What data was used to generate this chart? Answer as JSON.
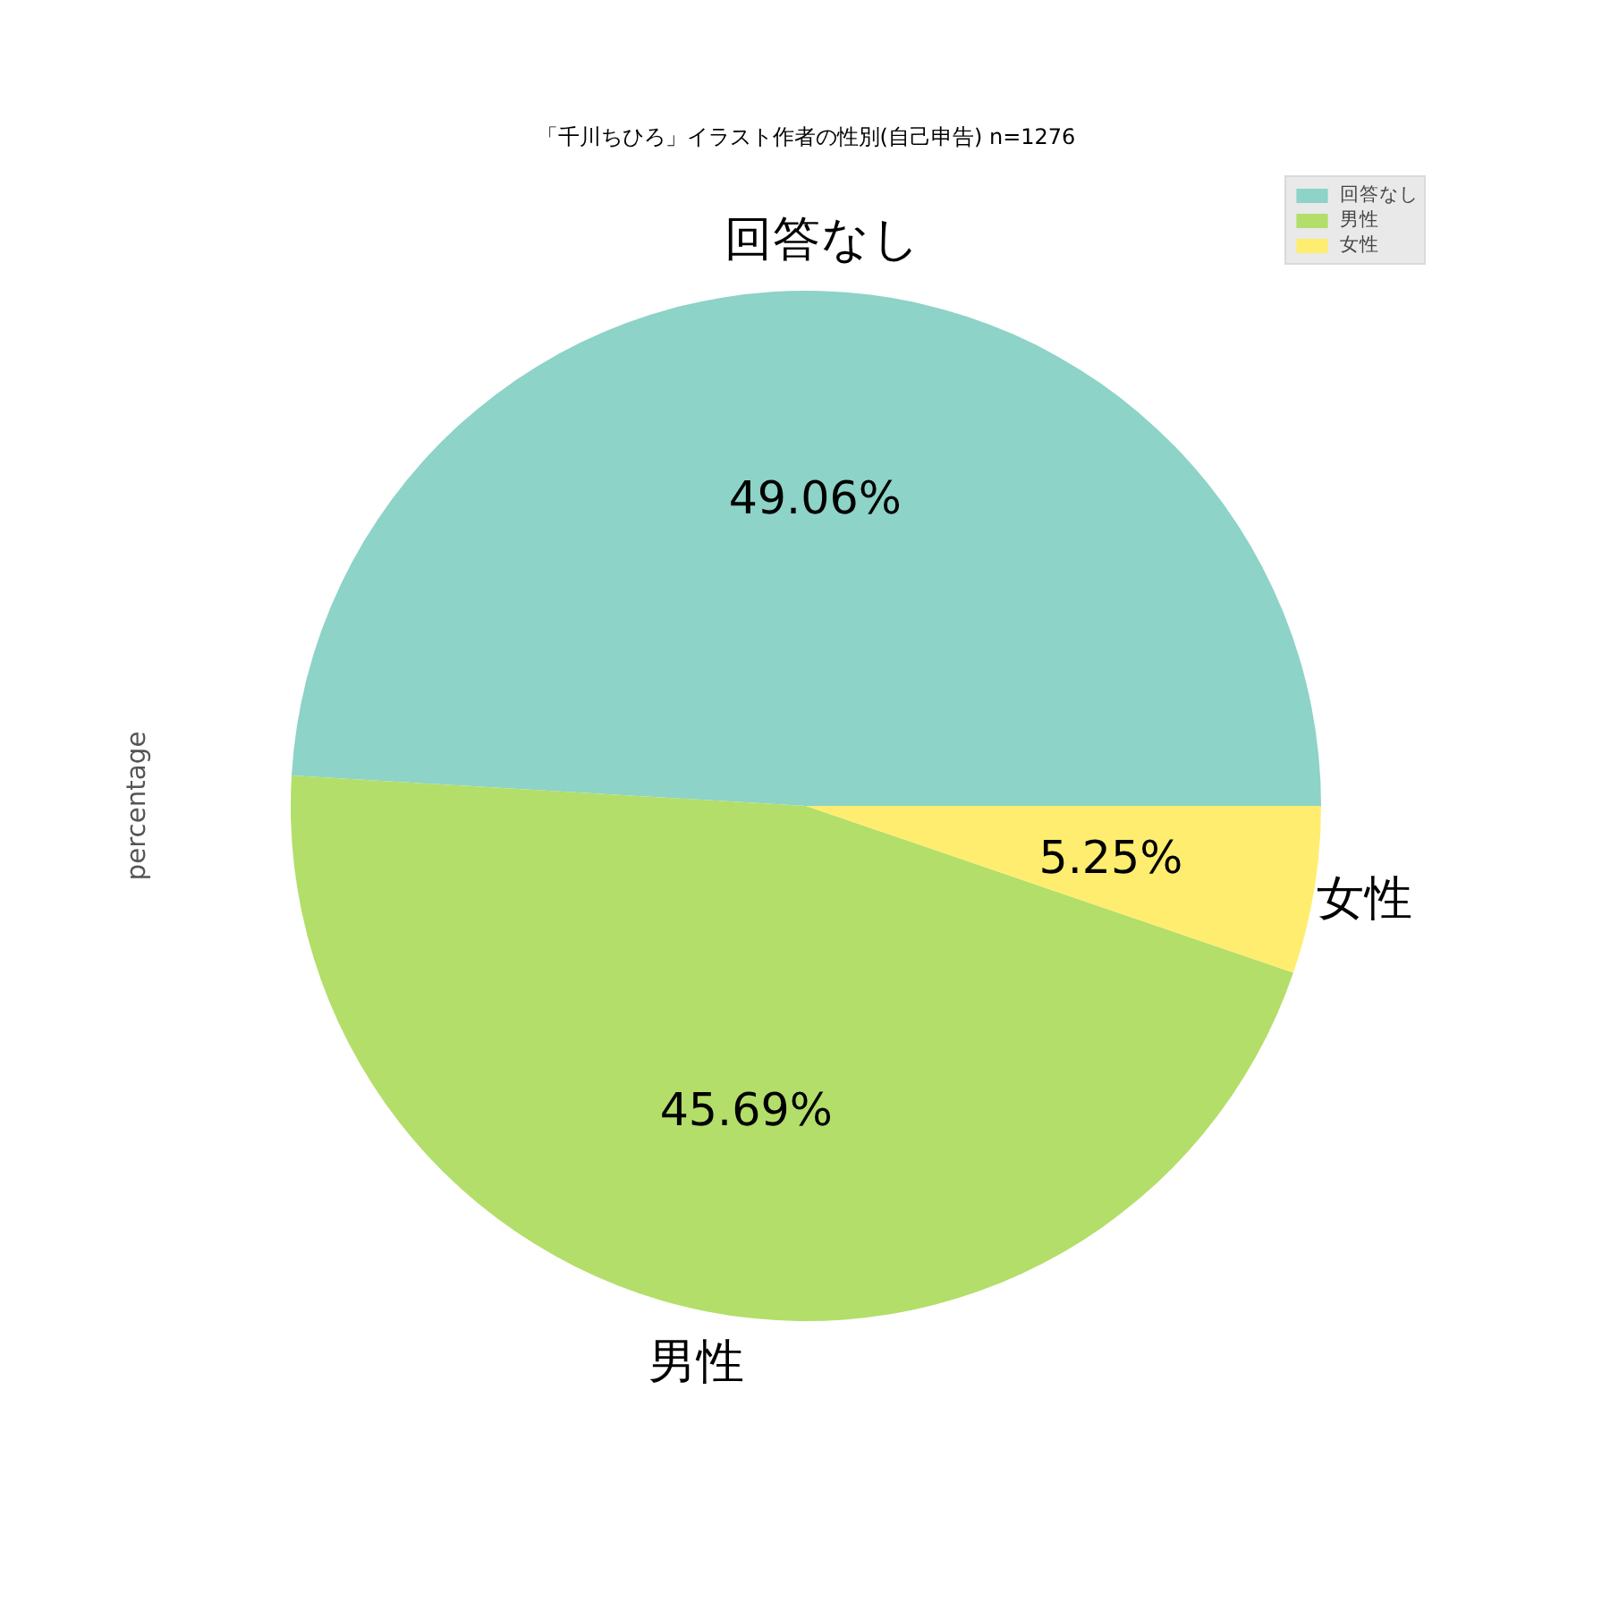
{
  "chart_data": {
    "type": "pie",
    "title": "「千川ちひろ」イラスト作者の性別(自己申告) n=1276",
    "ylabel": "percentage",
    "categories": [
      "回答なし",
      "男性",
      "女性"
    ],
    "values": [
      49.06,
      45.69,
      5.25
    ],
    "colors": [
      "#8dd3c7",
      "#b3de69",
      "#ffed6f"
    ],
    "value_labels": [
      "49.06%",
      "45.69%",
      "5.25%"
    ],
    "legend": "top right"
  }
}
